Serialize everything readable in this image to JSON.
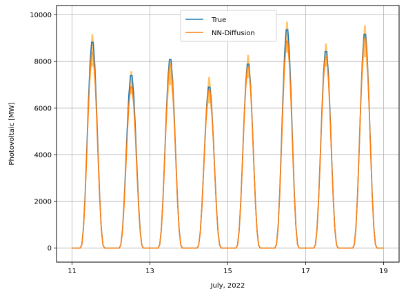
{
  "chart_data": {
    "type": "line",
    "title": "",
    "xlabel": "July, 2022",
    "ylabel": "Photovoltaic [MW]",
    "xlim": [
      10.6,
      19.4
    ],
    "ylim": [
      -600,
      10400
    ],
    "xticks": [
      11,
      13,
      15,
      17,
      19
    ],
    "xtick_labels": [
      "11",
      "13",
      "15",
      "17",
      "19"
    ],
    "yticks": [
      0,
      2000,
      4000,
      6000,
      8000,
      10000
    ],
    "ytick_labels": [
      "0",
      "2000",
      "4000",
      "6000",
      "8000",
      "10000"
    ],
    "grid": true,
    "legend_position": "top-center",
    "daily_peaks": [
      {
        "day": 11,
        "true": 8950,
        "nn_diffusion": 8500,
        "band_low": 7900,
        "band_high": 9300
      },
      {
        "day": 12,
        "true": 7500,
        "nn_diffusion": 7000,
        "band_low": 6700,
        "band_high": 7700
      },
      {
        "day": 13,
        "true": 8200,
        "nn_diffusion": 7950,
        "band_low": 7100,
        "band_high": 8100
      },
      {
        "day": 14,
        "true": 7000,
        "nn_diffusion": 6850,
        "band_low": 6300,
        "band_high": 7450
      },
      {
        "day": 15,
        "true": 8000,
        "nn_diffusion": 7850,
        "band_low": 7400,
        "band_high": 8400
      },
      {
        "day": 16,
        "true": 9500,
        "nn_diffusion": 9000,
        "band_low": 8500,
        "band_high": 9850
      },
      {
        "day": 17,
        "true": 8550,
        "nn_diffusion": 8300,
        "band_low": 7900,
        "band_high": 8900
      },
      {
        "day": 18,
        "true": 9300,
        "nn_diffusion": 9100,
        "band_low": 8300,
        "band_high": 9700
      }
    ],
    "series": [
      {
        "name": "True",
        "color": "#1f77b4"
      },
      {
        "name": "NN-Diffusion",
        "color": "#ff7f0e",
        "band_color": "#ffb84d"
      }
    ]
  }
}
